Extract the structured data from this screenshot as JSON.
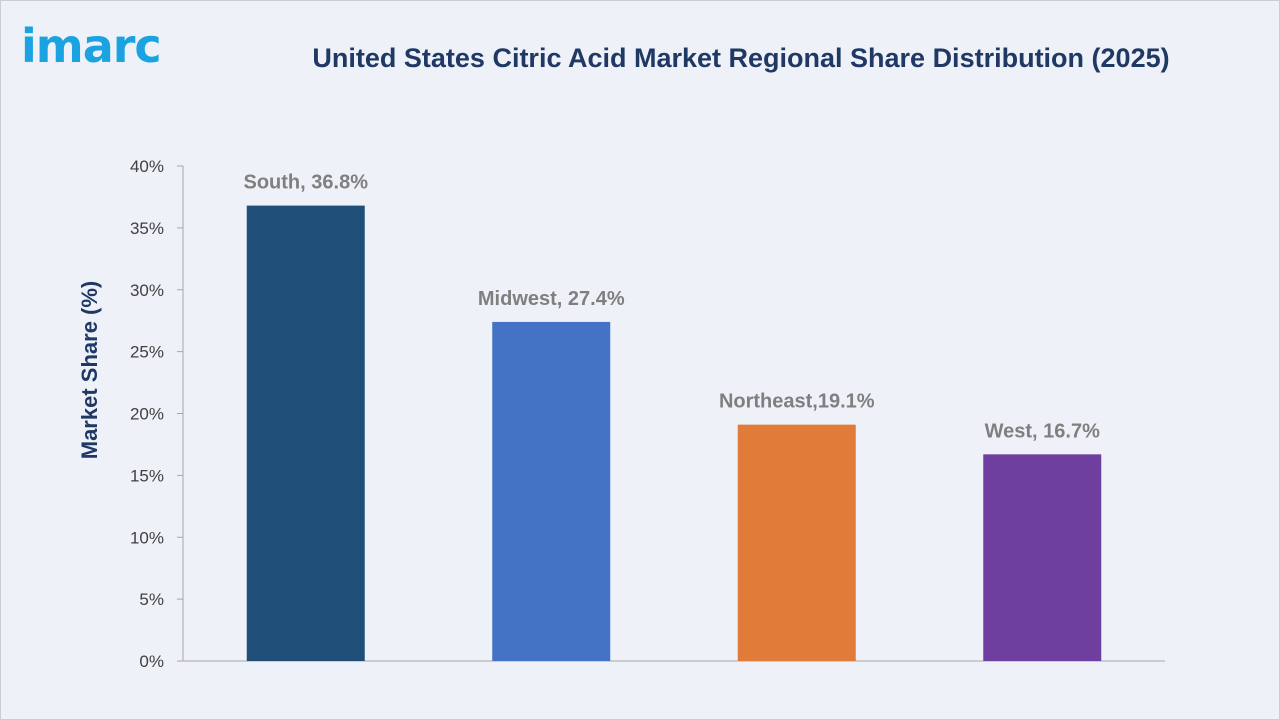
{
  "header": {
    "logo_text": "imarc",
    "title": "United States Citric Acid Market Regional Share Distribution (2025)"
  },
  "chart_data": {
    "type": "bar",
    "title": "United States Citric Acid Market Regional Share Distribution (2025)",
    "xlabel": "",
    "ylabel": "Market Share (%)",
    "ylim": [
      0,
      40
    ],
    "yticks": [
      "0%",
      "5%",
      "10%",
      "15%",
      "20%",
      "25%",
      "30%",
      "35%",
      "40%"
    ],
    "grid": false,
    "categories": [
      "South",
      "Midwest",
      "Northeast",
      "West"
    ],
    "values": [
      36.8,
      27.4,
      19.1,
      16.7
    ],
    "data_labels": [
      "South, 36.8%",
      "Midwest, 27.4%",
      "Northeast,19.1%",
      "West, 16.7%"
    ],
    "colors": [
      "#1f4e79",
      "#4472c4",
      "#e07b39",
      "#6f3fa0"
    ]
  }
}
